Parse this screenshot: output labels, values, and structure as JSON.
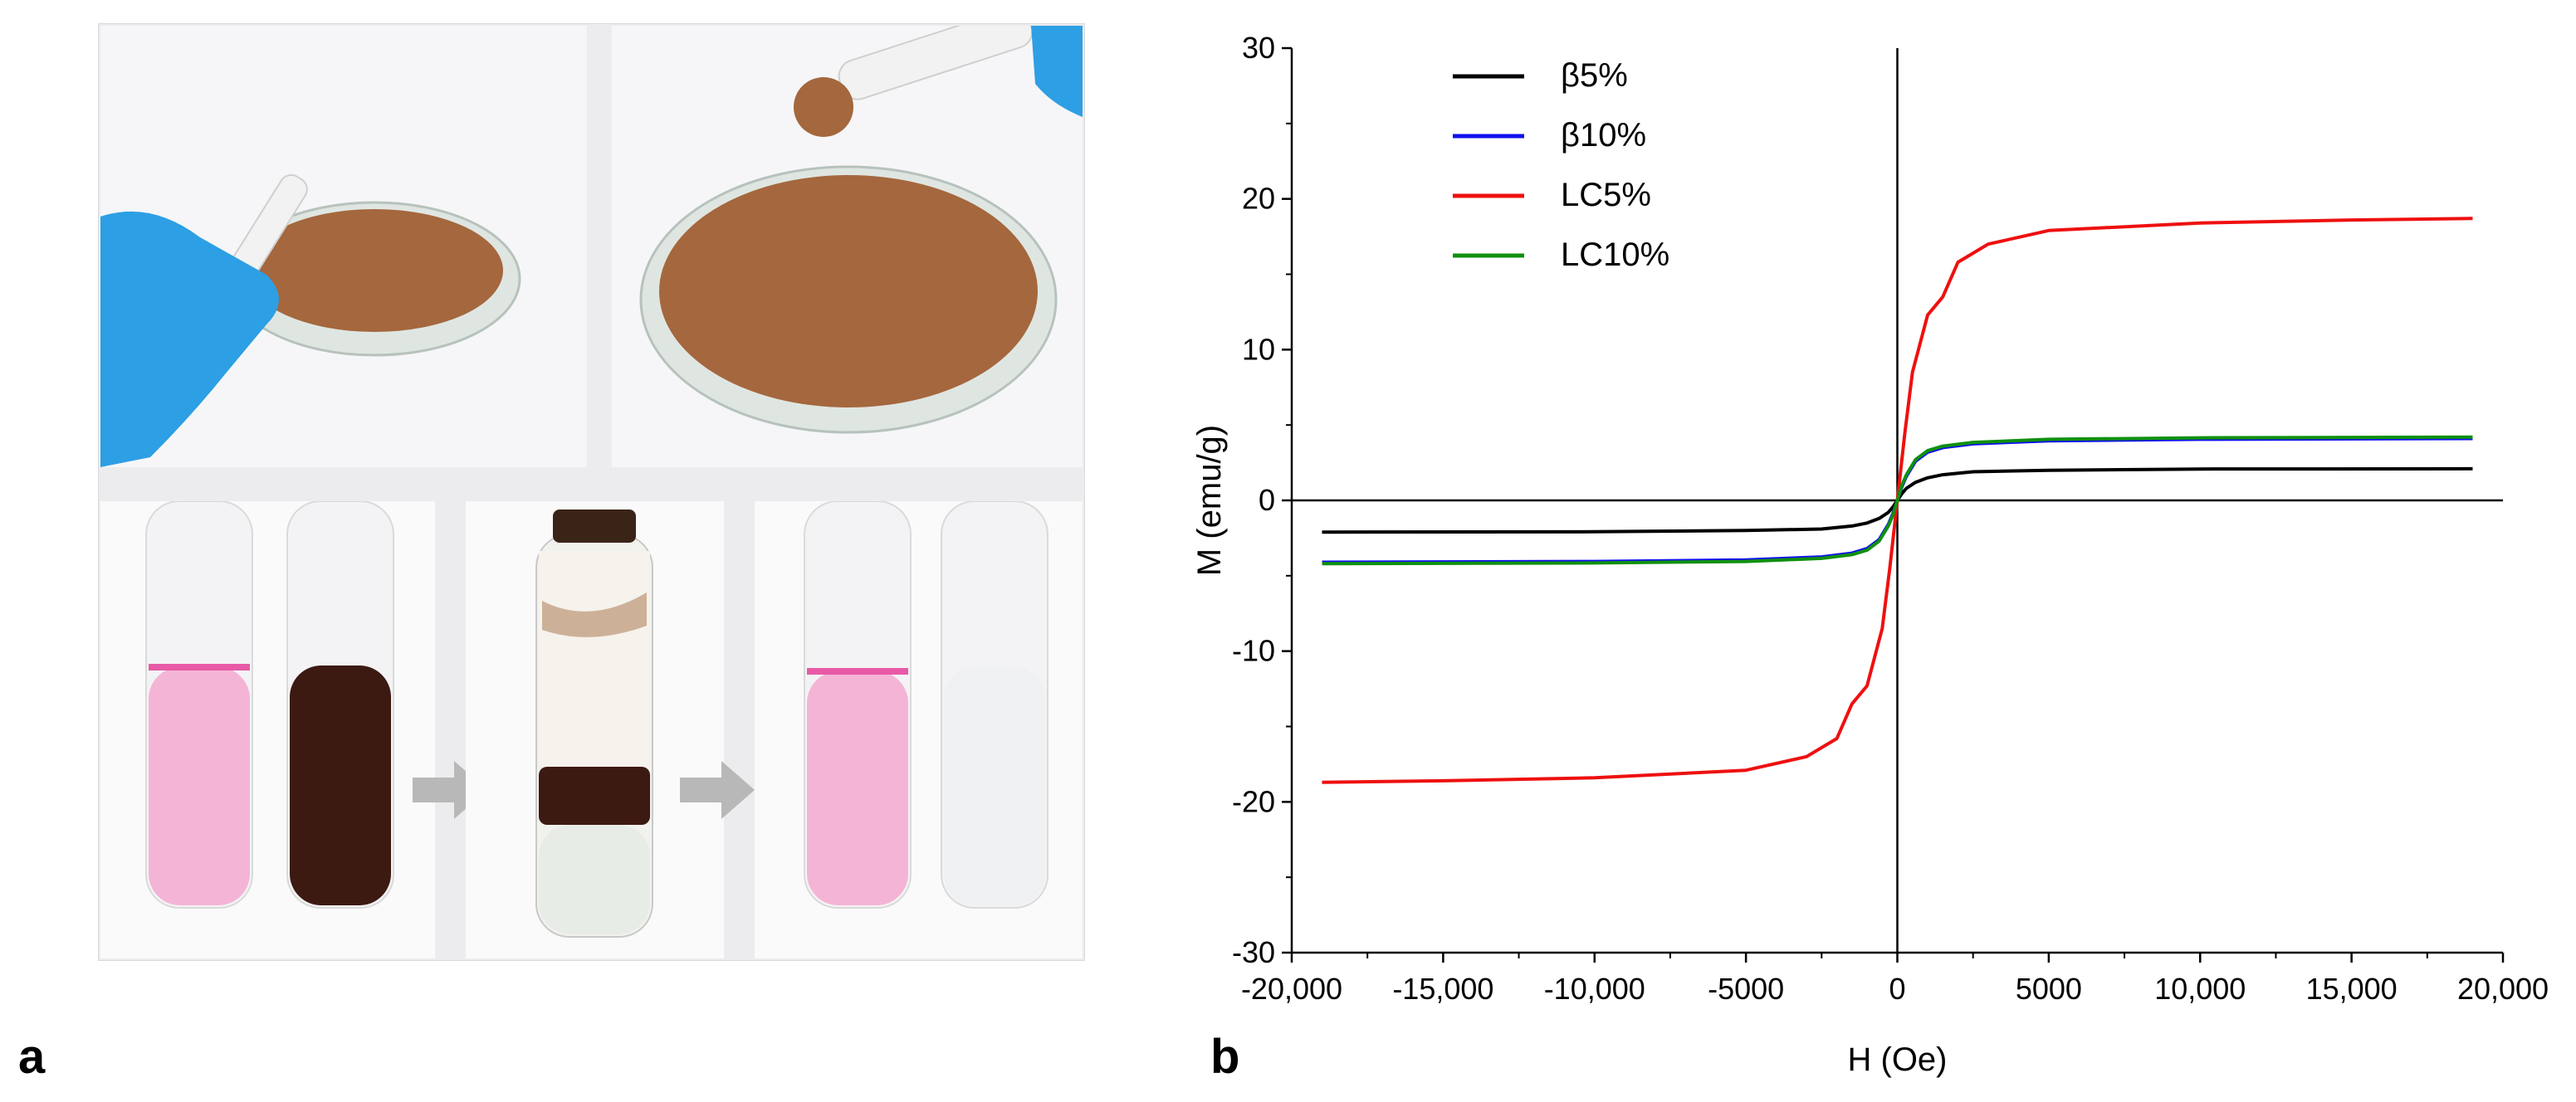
{
  "panels": {
    "left_letter": "a",
    "right_letter": "b"
  },
  "photos": {
    "top_left": "hand-with-pestle-and-dish-of-brown-powder",
    "top_right": "pestle-lifting-powder-over-dish",
    "bottom_left": "pink-solution-and-dark-brown-suspension-tubes",
    "bottom_middle": "tube-with-magnetic-particles-separated",
    "bottom_right": "pink-solution-and-clear-liquid-tubes"
  },
  "colors": {
    "series_beta5": "#000000",
    "series_beta10": "#1010ee",
    "series_lc5": "#ee1010",
    "series_lc10": "#109010",
    "powder": "#a5673d",
    "glove": "#2d9fe4",
    "pink": "#f4b4d6",
    "dark_brown": "#3c1a12",
    "arrow": "#b8b8b8"
  },
  "chart_data": {
    "type": "line",
    "title": "",
    "xlabel": "H (Oe)",
    "ylabel": "M (emu/g)",
    "xlim": [
      -20000,
      20000
    ],
    "ylim": [
      -30,
      30
    ],
    "x_ticks": [
      "-20,000",
      "-15,000",
      "-10,000",
      "-5000",
      "0",
      "5000",
      "10,000",
      "15,000",
      "20,000"
    ],
    "y_ticks": [
      "30",
      "20",
      "10",
      "0",
      "-10",
      "-20",
      "-30"
    ],
    "legend_position": "top-left",
    "series": [
      {
        "name": "β5%",
        "color": "#000000",
        "points": [
          [
            -19000,
            -2.1
          ],
          [
            -10000,
            -2.08
          ],
          [
            -5000,
            -2.0
          ],
          [
            -2500,
            -1.9
          ],
          [
            -1500,
            -1.7
          ],
          [
            -1000,
            -1.5
          ],
          [
            -600,
            -1.2
          ],
          [
            -300,
            -0.8
          ],
          [
            -150,
            -0.45
          ],
          [
            0,
            0
          ],
          [
            150,
            0.45
          ],
          [
            300,
            0.8
          ],
          [
            600,
            1.2
          ],
          [
            1000,
            1.5
          ],
          [
            1500,
            1.7
          ],
          [
            2500,
            1.9
          ],
          [
            5000,
            2.0
          ],
          [
            10000,
            2.08
          ],
          [
            19000,
            2.1
          ]
        ]
      },
      {
        "name": "β10%",
        "color": "#1010ee",
        "points": [
          [
            -19000,
            -4.1
          ],
          [
            -10000,
            -4.05
          ],
          [
            -5000,
            -3.95
          ],
          [
            -2500,
            -3.75
          ],
          [
            -1500,
            -3.5
          ],
          [
            -1000,
            -3.2
          ],
          [
            -600,
            -2.6
          ],
          [
            -300,
            -1.6
          ],
          [
            -150,
            -0.9
          ],
          [
            0,
            0
          ],
          [
            150,
            0.9
          ],
          [
            300,
            1.6
          ],
          [
            600,
            2.6
          ],
          [
            1000,
            3.2
          ],
          [
            1500,
            3.5
          ],
          [
            2500,
            3.75
          ],
          [
            5000,
            3.95
          ],
          [
            10000,
            4.05
          ],
          [
            19000,
            4.1
          ]
        ]
      },
      {
        "name": "LC5%",
        "color": "#ee1010",
        "points": [
          [
            -19000,
            -18.7
          ],
          [
            -15000,
            -18.6
          ],
          [
            -10000,
            -18.4
          ],
          [
            -5000,
            -17.9
          ],
          [
            -3000,
            -17.0
          ],
          [
            -2000,
            -15.8
          ],
          [
            -1500,
            -13.5
          ],
          [
            -1000,
            -12.3
          ],
          [
            -500,
            -8.5
          ],
          [
            -250,
            -4.5
          ],
          [
            0,
            0
          ],
          [
            250,
            4.5
          ],
          [
            500,
            8.5
          ],
          [
            1000,
            12.3
          ],
          [
            1500,
            13.5
          ],
          [
            2000,
            15.8
          ],
          [
            3000,
            17.0
          ],
          [
            5000,
            17.9
          ],
          [
            10000,
            18.4
          ],
          [
            15000,
            18.6
          ],
          [
            19000,
            18.7
          ]
        ]
      },
      {
        "name": "LC10%",
        "color": "#109010",
        "points": [
          [
            -19000,
            -4.2
          ],
          [
            -10000,
            -4.15
          ],
          [
            -5000,
            -4.05
          ],
          [
            -2500,
            -3.85
          ],
          [
            -1500,
            -3.6
          ],
          [
            -1000,
            -3.3
          ],
          [
            -600,
            -2.7
          ],
          [
            -300,
            -1.7
          ],
          [
            -150,
            -1.0
          ],
          [
            0,
            0
          ],
          [
            150,
            1.0
          ],
          [
            300,
            1.7
          ],
          [
            600,
            2.7
          ],
          [
            1000,
            3.3
          ],
          [
            1500,
            3.6
          ],
          [
            2500,
            3.85
          ],
          [
            5000,
            4.05
          ],
          [
            10000,
            4.15
          ],
          [
            19000,
            4.2
          ]
        ]
      }
    ]
  }
}
